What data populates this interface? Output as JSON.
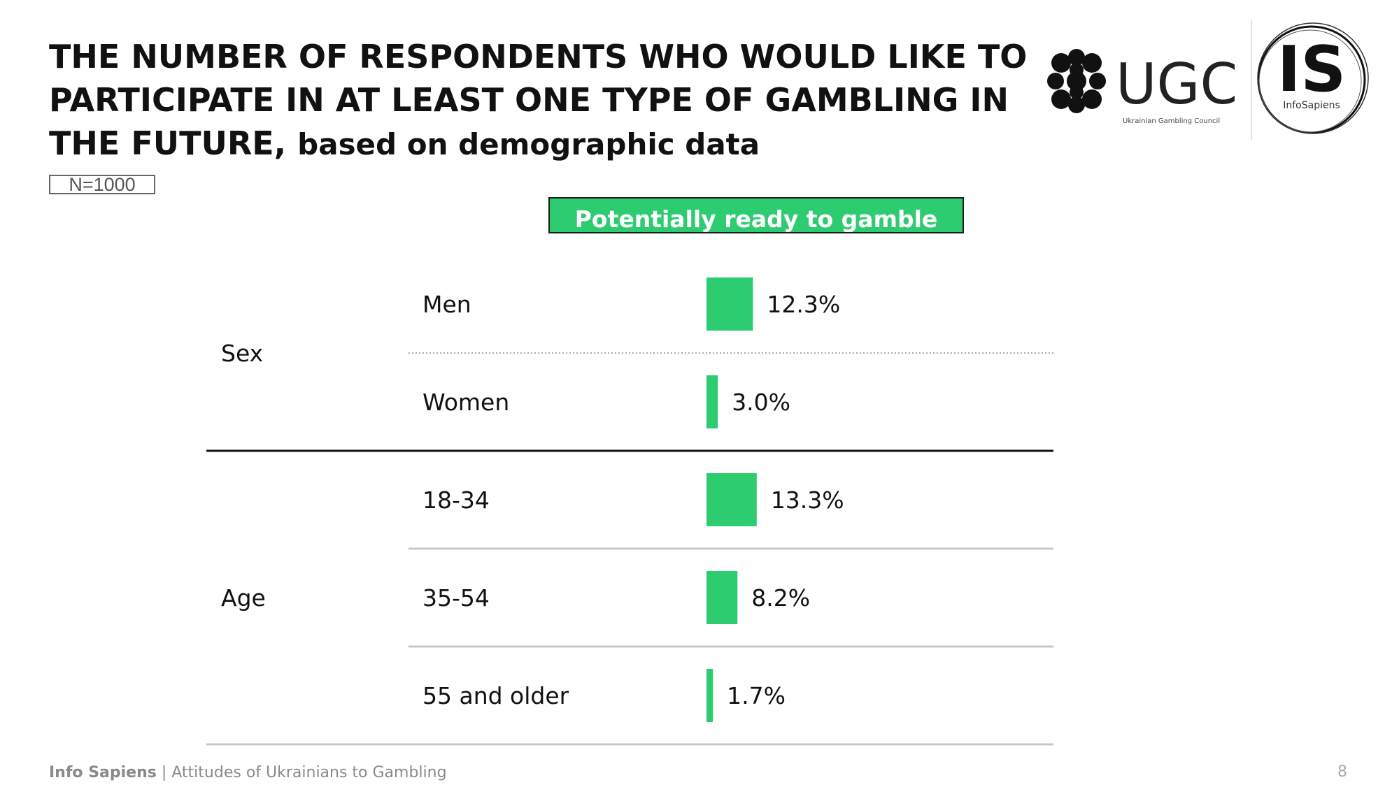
{
  "title": {
    "main": "THE NUMBER OF RESPONDENTS WHO WOULD LIKE TO PARTICIPATE IN AT LEAST ONE TYPE OF GAMBLING IN THE FUTURE,",
    "sub": "based on demographic data"
  },
  "sample": "N=1000",
  "logos": {
    "ugc_text": "UGC",
    "ugc_caption": "Ukrainian Gambling Council",
    "is_text": "IS",
    "is_caption": "InfoSapiens"
  },
  "footer": {
    "brand": "Info Sapiens",
    "separator": " | ",
    "text": "Attitudes of Ukrainians to Gambling",
    "page": "8"
  },
  "colors": {
    "bar": "#2ecc71",
    "header_bg": "#2ecc71"
  },
  "chart_data": {
    "type": "bar",
    "orientation": "horizontal",
    "series_header": "Potentially ready to gamble",
    "groups": [
      {
        "name": "Sex",
        "categories": [
          "Men",
          "Women"
        ],
        "values": [
          12.3,
          3.0
        ],
        "labels": [
          "12.3%",
          "3.0%"
        ]
      },
      {
        "name": "Age",
        "categories": [
          "18-34",
          "35-54",
          "55 and older"
        ],
        "values": [
          13.3,
          8.2,
          1.7
        ],
        "labels": [
          "13.3%",
          "8.2%",
          "1.7%"
        ]
      }
    ],
    "unit": "%",
    "xlim": [
      0,
      100
    ]
  }
}
